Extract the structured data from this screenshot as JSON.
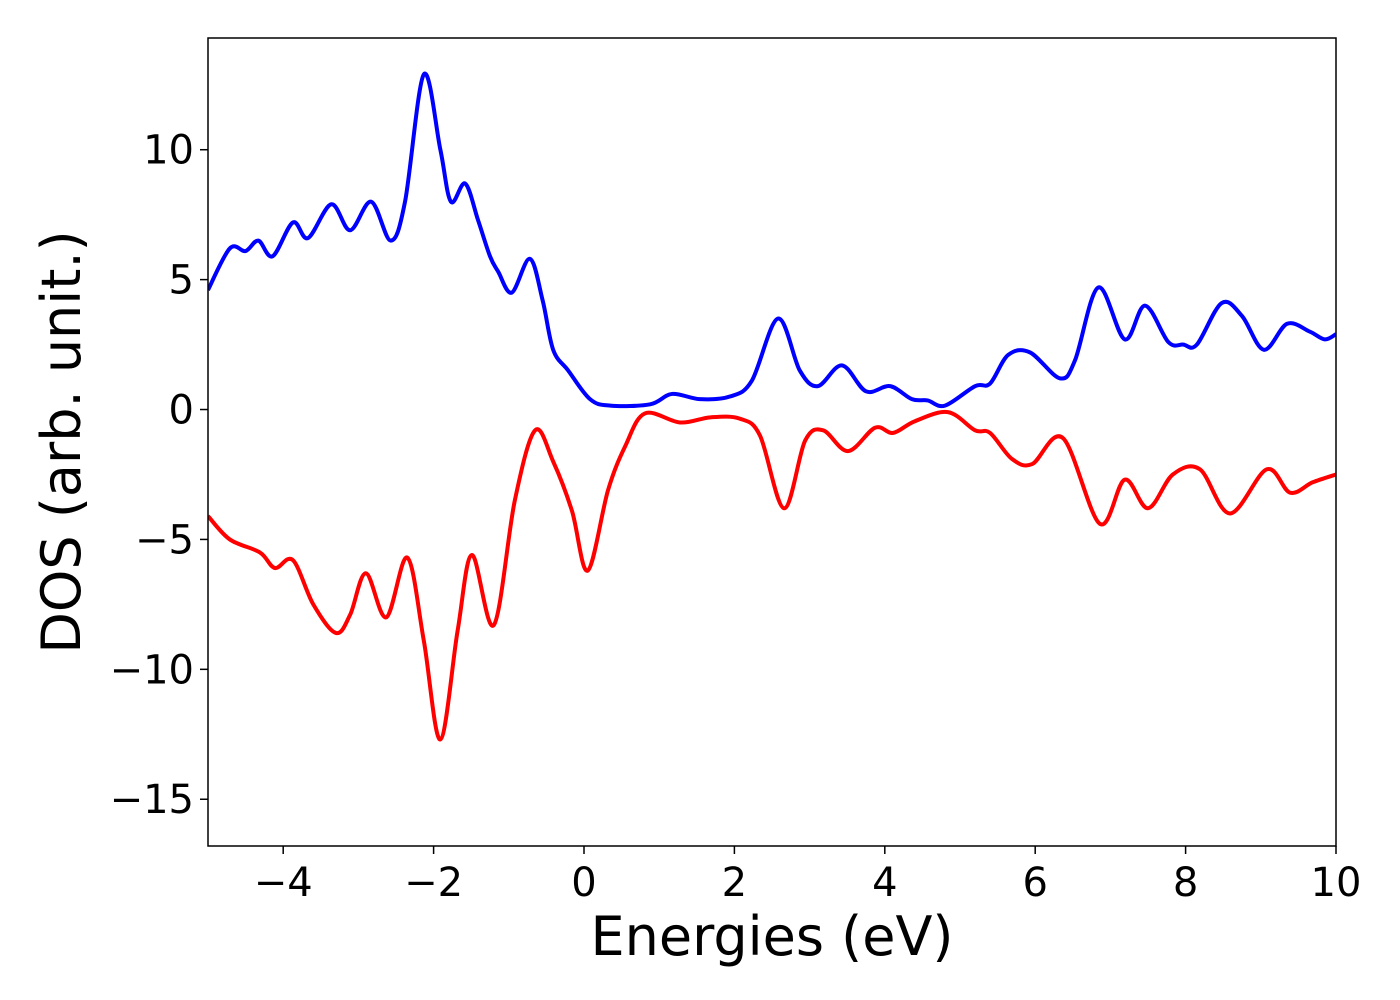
{
  "chart_data": {
    "type": "line",
    "x_label": "Energies (eV)",
    "y_label": "DOS (arb. unit.)",
    "xlim": [
      -5,
      10
    ],
    "ylim": [
      -16.8,
      14.3
    ],
    "xticks": [
      {
        "value": -4,
        "label": "−4"
      },
      {
        "value": -2,
        "label": "−2"
      },
      0,
      2,
      4,
      6,
      8,
      10
    ],
    "yticks": [
      {
        "value": -15,
        "label": "−15"
      },
      {
        "value": -10,
        "label": "−10"
      },
      {
        "value": -5,
        "label": "−5"
      },
      0,
      5,
      10
    ],
    "grid": false,
    "series": [
      {
        "color": "#0000ff",
        "x": [
          -5,
          -4.71,
          -4.5,
          -4.33,
          -4.14,
          -3.87,
          -3.67,
          -3.36,
          -3.11,
          -2.83,
          -2.57,
          -2.38,
          -2.13,
          -1.91,
          -1.77,
          -1.58,
          -1.41,
          -1.25,
          -1.14,
          -0.96,
          -0.72,
          -0.55,
          -0.41,
          -0.21,
          0.08,
          0.35,
          0.88,
          1.17,
          1.54,
          1.94,
          2.23,
          2.58,
          2.87,
          3.11,
          3.43,
          3.75,
          4.07,
          4.36,
          4.57,
          4.8,
          5.2,
          5.4,
          5.64,
          5.93,
          6.33,
          6.53,
          6.84,
          7.19,
          7.46,
          7.77,
          7.97,
          8.15,
          8.48,
          8.75,
          9.04,
          9.35,
          9.65,
          9.85,
          10
        ],
        "values": [
          4.6,
          6.2,
          6.1,
          6.5,
          5.9,
          7.2,
          6.6,
          7.9,
          6.9,
          8.0,
          6.5,
          8.0,
          12.9,
          10.0,
          8.0,
          8.7,
          7.3,
          5.9,
          5.3,
          4.5,
          5.8,
          4.2,
          2.3,
          1.5,
          0.4,
          0.15,
          0.2,
          0.6,
          0.4,
          0.5,
          1.1,
          3.5,
          1.5,
          0.9,
          1.7,
          0.7,
          0.9,
          0.4,
          0.35,
          0.15,
          0.9,
          1.0,
          2.1,
          2.2,
          1.2,
          1.9,
          4.7,
          2.7,
          4.0,
          2.6,
          2.5,
          2.5,
          4.1,
          3.6,
          2.3,
          3.3,
          3.0,
          2.7,
          2.9
        ]
      },
      {
        "color": "#ff0000",
        "x": [
          -5,
          -4.71,
          -4.31,
          -4.11,
          -3.87,
          -3.6,
          -3.3,
          -3.11,
          -2.9,
          -2.63,
          -2.35,
          -2.13,
          -1.91,
          -1.68,
          -1.49,
          -1.2,
          -0.92,
          -0.65,
          -0.41,
          -0.16,
          0.05,
          0.32,
          0.55,
          0.81,
          1.28,
          1.68,
          2.07,
          2.34,
          2.66,
          2.94,
          3.18,
          3.51,
          3.87,
          4.11,
          4.4,
          4.84,
          5.2,
          5.4,
          5.69,
          5.96,
          6.37,
          6.86,
          7.19,
          7.5,
          7.83,
          8.19,
          8.59,
          9.08,
          9.39,
          9.69,
          10
        ],
        "values": [
          -4.1,
          -5.0,
          -5.5,
          -6.1,
          -5.8,
          -7.5,
          -8.6,
          -7.9,
          -6.3,
          -8.0,
          -5.7,
          -8.9,
          -12.7,
          -8.5,
          -5.6,
          -8.3,
          -3.5,
          -0.8,
          -2.0,
          -3.9,
          -6.2,
          -3.1,
          -1.4,
          -0.15,
          -0.5,
          -0.3,
          -0.35,
          -1.0,
          -3.8,
          -1.2,
          -0.8,
          -1.6,
          -0.7,
          -0.9,
          -0.45,
          -0.1,
          -0.8,
          -0.9,
          -1.9,
          -2.1,
          -1.1,
          -4.4,
          -2.7,
          -3.8,
          -2.5,
          -2.3,
          -4.0,
          -2.3,
          -3.2,
          -2.8,
          -2.5
        ]
      }
    ]
  }
}
